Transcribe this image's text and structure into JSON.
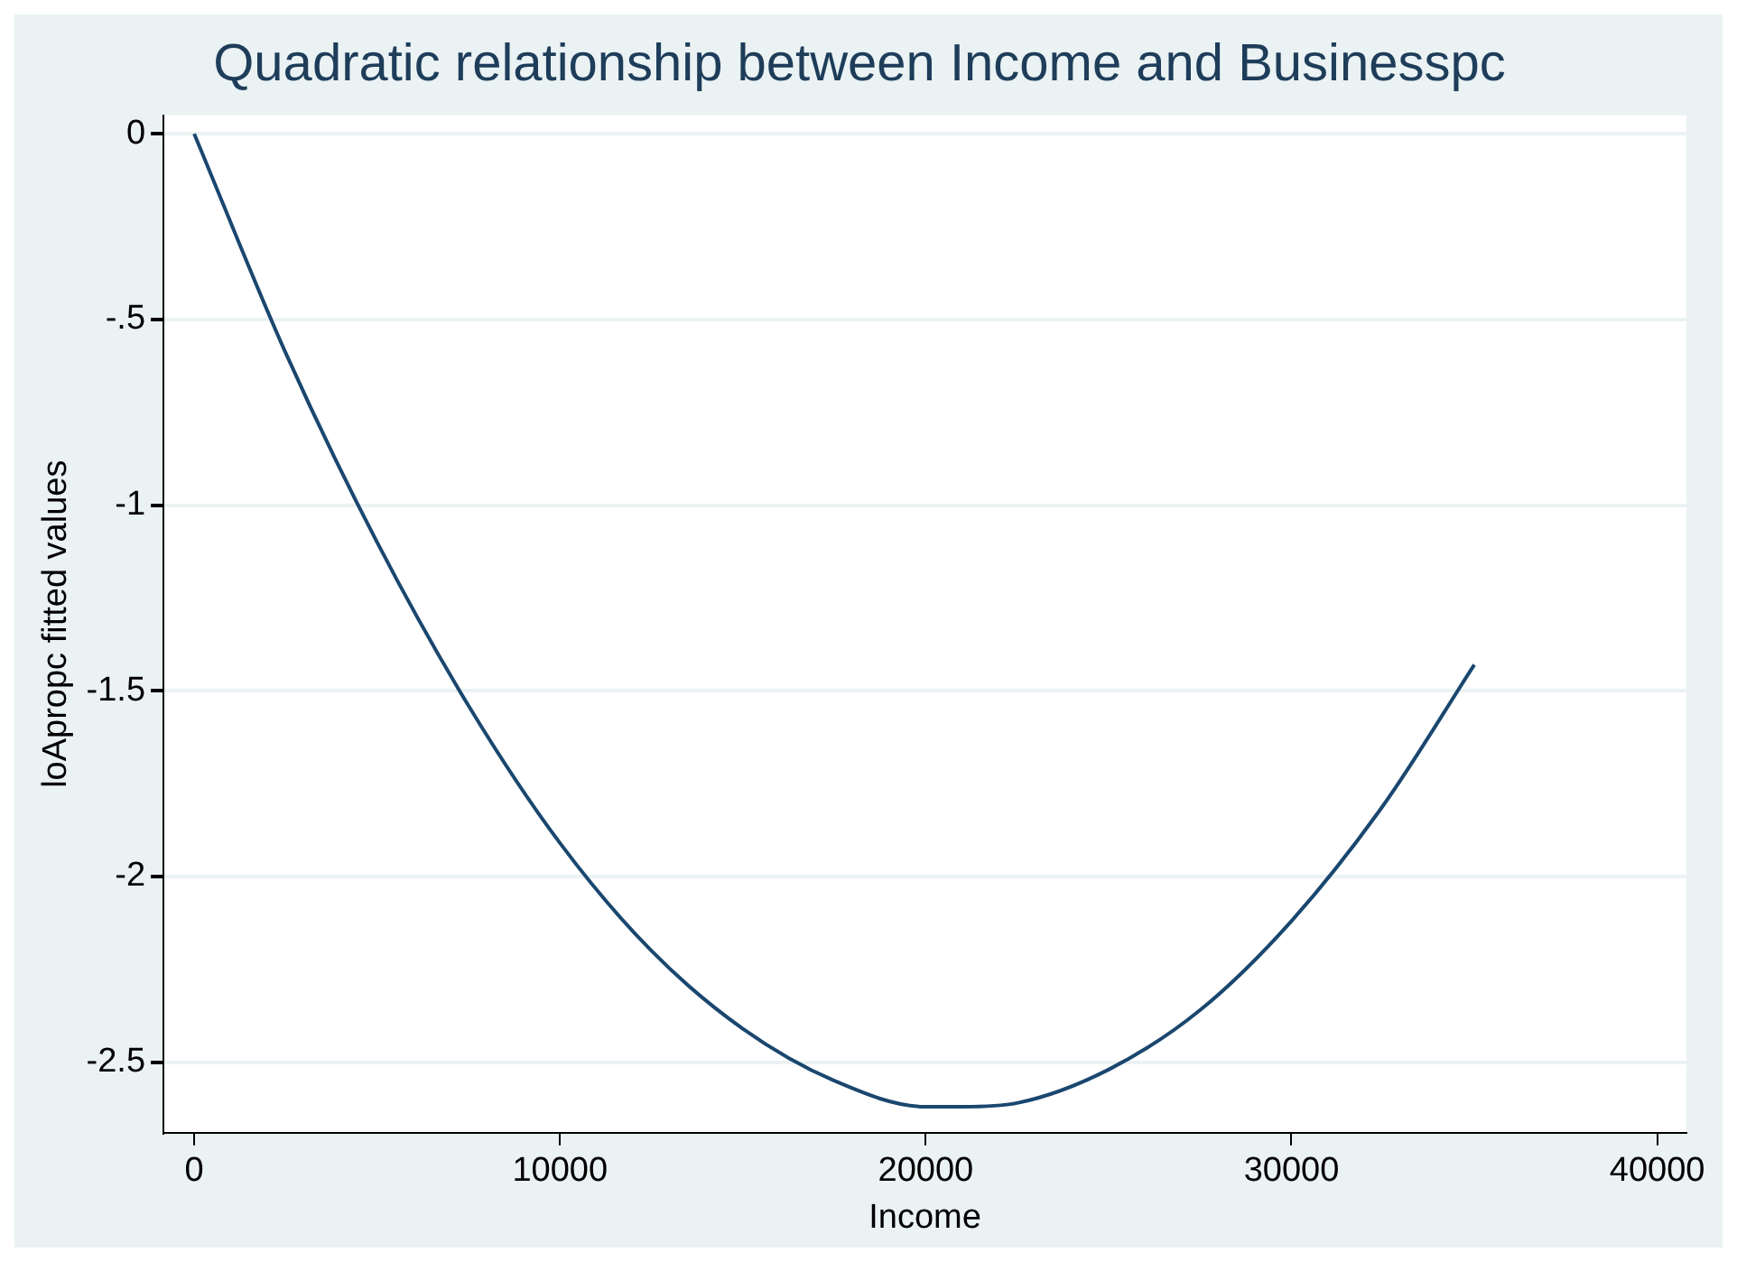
{
  "chart_data": {
    "type": "line",
    "title": "Quadratic relationship between Income and Businesspc",
    "xlabel": "Income",
    "ylabel": "loApropc fitted values",
    "x": [
      0,
      2500,
      5000,
      7500,
      10000,
      12500,
      15000,
      17500,
      20000,
      21000,
      22500,
      25000,
      27500,
      30000,
      32500,
      35000
    ],
    "series": [
      {
        "color": "#1a476f",
        "values": [
          0,
          -0.59,
          -1.1,
          -1.54,
          -1.91,
          -2.2,
          -2.41,
          -2.55,
          -2.62,
          -2.62,
          -2.61,
          -2.52,
          -2.36,
          -2.12,
          -1.81,
          -1.43
        ]
      }
    ],
    "xlim": [
      -840,
      40800
    ],
    "xticks": [
      0,
      10000,
      20000,
      30000,
      40000
    ],
    "ylim": [
      -2.69,
      0.05
    ],
    "yticks": [
      0,
      {
        "value": -0.5,
        "label": "-.5"
      },
      -1,
      {
        "value": -1.5,
        "label": "-1.5"
      },
      -2,
      {
        "value": -2.5,
        "label": "-2.5"
      }
    ],
    "grid": "y",
    "legend": false,
    "marker": "none",
    "line_style": "solid"
  }
}
